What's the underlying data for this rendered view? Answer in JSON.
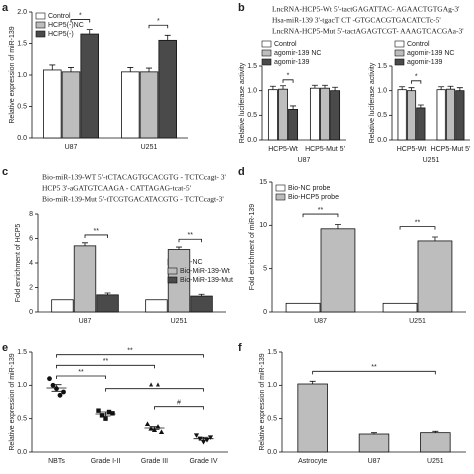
{
  "chart_data": [
    {
      "type": "bar",
      "panel": "a",
      "ylabel": "Relative expression of miR-139",
      "categories": [
        "U87",
        "U251"
      ],
      "series": [
        {
          "name": "Control",
          "color": "#ffffff",
          "values": [
            1.08,
            1.05
          ],
          "errors": [
            0.08,
            0.07
          ]
        },
        {
          "name": "HCP5(-)NC",
          "color": "#bdbdbd",
          "values": [
            1.05,
            1.05
          ],
          "errors": [
            0.07,
            0.06
          ]
        },
        {
          "name": "HCP5(-)",
          "color": "#4a4a4a",
          "values": [
            1.65,
            1.55
          ],
          "errors": [
            0.07,
            0.08
          ]
        }
      ],
      "ylim": [
        0,
        2
      ],
      "yticks": [
        {
          "value": 0,
          "label": "0.0"
        },
        {
          "value": 0.5,
          "label": "0.5"
        },
        {
          "value": 1,
          "label": "1.0"
        },
        {
          "value": 1.5,
          "label": "1.5"
        },
        {
          "value": 2,
          "label": "2.0"
        }
      ],
      "annotations": [
        "*",
        "*"
      ]
    },
    {
      "type": "bar",
      "panel": "b",
      "ylabel": "Relative luciferase activity",
      "xlabel": "U87",
      "sequence": [
        "LncRNA-HCP5-Wt  5'-tactGAGATTAC- AGAACTGTGAg-3'",
        "Hsa-miR-139       3'-tgacT CT -GTGCACGTGACATCTc-5'",
        "LncRNA-HCP5-Mut 5'-tactAGAGTCGT- AAAGTCACGAa-3'"
      ],
      "categories": [
        "HCP5-Wt",
        "HCP5-Mut 5'"
      ],
      "series": [
        {
          "name": "Control",
          "color": "#ffffff",
          "values": [
            1.02,
            1.05
          ],
          "errors": [
            0.07,
            0.06
          ]
        },
        {
          "name": "agomir-139 NC",
          "color": "#bdbdbd",
          "values": [
            1.03,
            1.05
          ],
          "errors": [
            0.07,
            0.06
          ]
        },
        {
          "name": "agomir-139",
          "color": "#4a4a4a",
          "values": [
            0.62,
            1.0
          ],
          "errors": [
            0.07,
            0.07
          ]
        }
      ],
      "ylim": [
        0,
        1.5
      ],
      "yticks": [
        {
          "value": 0,
          "label": "0.0"
        },
        {
          "value": 0.5,
          "label": "0.5"
        },
        {
          "value": 1,
          "label": "1.0"
        },
        {
          "value": 1.5,
          "label": "1.5"
        }
      ],
      "annotations": [
        "*"
      ]
    },
    {
      "type": "bar",
      "ylabel": "Relative luciferase activity",
      "xlabel": "U251",
      "categories": [
        "HCP5-Wt",
        "HCP5-Mut 5'"
      ],
      "series": [
        {
          "name": "Control",
          "color": "#ffffff",
          "values": [
            1.02,
            1.02
          ],
          "errors": [
            0.06,
            0.06
          ]
        },
        {
          "name": "agomir-139 NC",
          "color": "#bdbdbd",
          "values": [
            1.0,
            1.03
          ],
          "errors": [
            0.06,
            0.06
          ]
        },
        {
          "name": "agomir-139",
          "color": "#4a4a4a",
          "values": [
            0.65,
            1.0
          ],
          "errors": [
            0.06,
            0.06
          ]
        }
      ],
      "ylim": [
        0,
        1.5
      ],
      "yticks": [
        {
          "value": 0,
          "label": "0.0"
        },
        {
          "value": 0.5,
          "label": "0.5"
        },
        {
          "value": 1,
          "label": "1.0"
        },
        {
          "value": 1.5,
          "label": "1.5"
        }
      ],
      "annotations": [
        "*"
      ]
    },
    {
      "type": "bar",
      "panel": "c",
      "ylabel": "Fold enrichment of HCP5",
      "sequence": [
        "Bio-miR-139-WT  5'-tCTACAGTGCACGTG - TCTCcagt- 3'",
        "HCP5  3'-aGATGTCAAGA - CATTAGAG-tcat-5'",
        "Bio-miR-139-Mut  5'-tTCGTGACATACGTG - TCTCcagt-3'"
      ],
      "categories": [
        "U87",
        "U251"
      ],
      "series": [
        {
          "name": "Bio-NC",
          "color": "#ffffff",
          "values": [
            1,
            1
          ],
          "errors": [
            0,
            0
          ]
        },
        {
          "name": "Bio-MiR-139-Wt",
          "color": "#bdbdbd",
          "values": [
            5.4,
            5.1
          ],
          "errors": [
            0.25,
            0.2
          ]
        },
        {
          "name": "Bio-MiR-139-Mut",
          "color": "#4a4a4a",
          "values": [
            1.4,
            1.3
          ],
          "errors": [
            0.15,
            0.15
          ]
        }
      ],
      "ylim": [
        0,
        8
      ],
      "yticks": [
        0,
        2,
        4,
        6,
        8
      ],
      "annotations": [
        "**",
        "**"
      ]
    },
    {
      "type": "bar",
      "panel": "d",
      "ylabel": "Fold enrichment of miR-139",
      "categories": [
        "U87",
        "U251"
      ],
      "series": [
        {
          "name": "Bio-NC probe",
          "color": "#ffffff",
          "values": [
            1,
            1
          ],
          "errors": [
            0,
            0
          ]
        },
        {
          "name": "Bio-HCP5 probe",
          "color": "#bdbdbd",
          "values": [
            9.6,
            8.2
          ],
          "errors": [
            0.5,
            0.45
          ]
        }
      ],
      "ylim": [
        0,
        15
      ],
      "yticks": [
        0,
        5,
        10,
        15
      ],
      "annotations": [
        "**",
        "**"
      ]
    },
    {
      "type": "dot",
      "panel": "e",
      "ylabel": "Relative expression of miR-139",
      "categories": [
        "NBTs",
        "Grade I-II",
        "Grade III",
        "Grade IV"
      ],
      "values": [
        0.96,
        0.57,
        0.36,
        0.2
      ],
      "errors": [
        0.05,
        0.03,
        0.02,
        0.02
      ],
      "points": [
        [
          1.1,
          1.0,
          0.95,
          0.85,
          0.9
        ],
        [
          0.62,
          0.55,
          0.5,
          0.6,
          0.58
        ],
        [
          0.42,
          0.35,
          0.33,
          0.38,
          0.3
        ],
        [
          0.25,
          0.2,
          0.15,
          0.18,
          0.22
        ]
      ],
      "ylim": [
        0,
        1.5
      ],
      "yticks": [
        {
          "value": 0,
          "label": "0.0"
        },
        {
          "value": 0.5,
          "label": "0.5"
        },
        {
          "value": 1,
          "label": "1.0"
        },
        {
          "value": 1.5,
          "label": "1.5"
        }
      ],
      "annotations": [
        "**",
        "**",
        "**",
        "▲▲",
        "#"
      ]
    },
    {
      "type": "bar",
      "panel": "f",
      "ylabel": "Relative expression of miR-139",
      "categories": [
        "Astrocyte",
        "U87",
        "U251"
      ],
      "series": [
        {
          "color": "#bdbdbd",
          "values": [
            1.02,
            0.27,
            0.29
          ],
          "errors": [
            0.04,
            0.02,
            0.02
          ]
        }
      ],
      "ylim": [
        0,
        1.5
      ],
      "yticks": [
        {
          "value": 0,
          "label": "0.0"
        },
        {
          "value": 0.5,
          "label": "0.5"
        },
        {
          "value": 1,
          "label": "1.0"
        },
        {
          "value": 1.5,
          "label": "1.5"
        }
      ],
      "annotations": [
        "**"
      ]
    }
  ]
}
